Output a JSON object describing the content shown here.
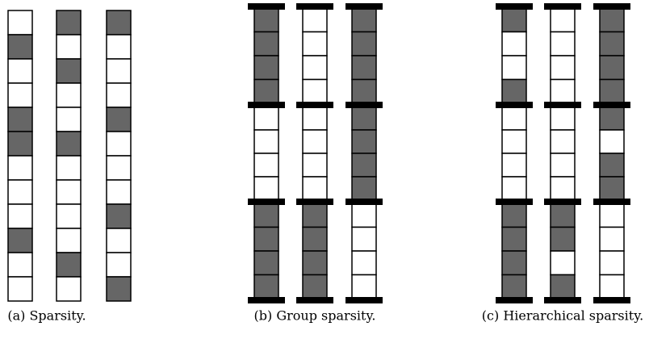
{
  "panels": [
    {
      "caption": "(a) Sparsity.",
      "grouped": false,
      "columns": [
        [
          0,
          1,
          0,
          0,
          1,
          1,
          0,
          0,
          0,
          1,
          0,
          0
        ],
        [
          1,
          0,
          1,
          0,
          0,
          1,
          0,
          0,
          0,
          0,
          1,
          0
        ],
        [
          1,
          0,
          0,
          0,
          1,
          0,
          0,
          0,
          1,
          0,
          0,
          1
        ]
      ]
    },
    {
      "caption": "(b) Group sparsity.",
      "grouped": true,
      "columns": [
        [
          1,
          1,
          1,
          1,
          0,
          0,
          0,
          0,
          1,
          1,
          1,
          1
        ],
        [
          0,
          0,
          0,
          0,
          0,
          0,
          0,
          0,
          1,
          1,
          1,
          1
        ],
        [
          1,
          1,
          1,
          1,
          1,
          1,
          1,
          1,
          0,
          0,
          0,
          0
        ]
      ]
    },
    {
      "caption": "(c) Hierarchical sparsity.",
      "grouped": true,
      "columns": [
        [
          1,
          0,
          0,
          1,
          0,
          0,
          0,
          0,
          1,
          1,
          1,
          1
        ],
        [
          0,
          0,
          0,
          0,
          0,
          0,
          0,
          0,
          1,
          1,
          0,
          1
        ],
        [
          1,
          1,
          1,
          1,
          1,
          0,
          1,
          1,
          0,
          0,
          0,
          0
        ]
      ]
    }
  ]
}
